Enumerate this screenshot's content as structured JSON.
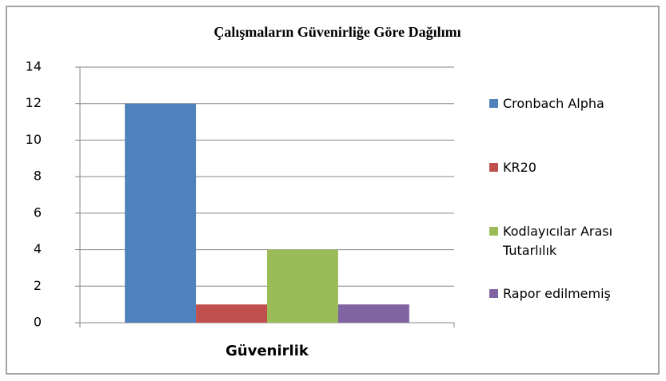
{
  "chart_data": {
    "type": "bar",
    "title": "Çalışmaların  Güvenirliğe Göre Dağılımı",
    "categories": [
      "Güvenirlik"
    ],
    "series": [
      {
        "name": "Cronbach Alpha",
        "color": "#4f81bd",
        "values": [
          12
        ]
      },
      {
        "name": "KR20",
        "color": "#c0504d",
        "values": [
          1
        ]
      },
      {
        "name": "Kodlayıcılar Arası Tutarlılık",
        "color": "#9bbb59",
        "values": [
          4
        ]
      },
      {
        "name": "Rapor edilmemiş",
        "color": "#8064a2",
        "values": [
          1
        ]
      }
    ],
    "ylim": [
      0,
      14
    ],
    "yticks": [
      0,
      2,
      4,
      6,
      8,
      10,
      12,
      14
    ],
    "grid": true,
    "legend": "right"
  }
}
